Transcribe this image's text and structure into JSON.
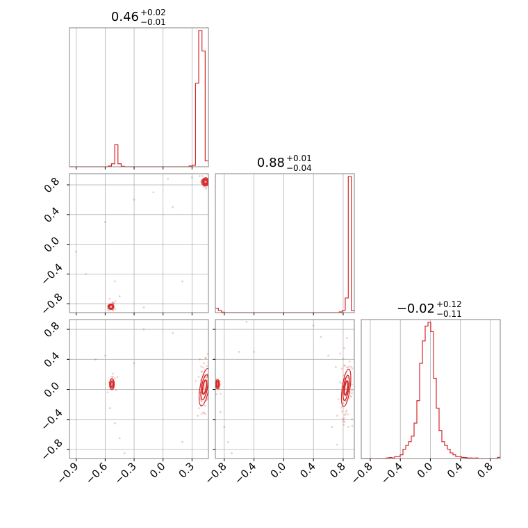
{
  "colors": {
    "series": "#d62728",
    "grid": "#b0b0b0",
    "axis": "#000000"
  },
  "titles": [
    {
      "base": "0.46",
      "plus": "+0.02",
      "minus": "−0.01"
    },
    {
      "base": "0.88",
      "plus": "+0.01",
      "minus": "−0.04"
    },
    {
      "base": "−0.02",
      "plus": "+0.12",
      "minus": "−0.11"
    }
  ],
  "chart_data": {
    "type": "corner",
    "grid": true,
    "parameters": [
      {
        "range": [
          -0.97,
          0.47
        ],
        "ticks": [
          -0.9,
          -0.6,
          -0.3,
          0.0,
          0.3
        ],
        "tick_labels": [
          "−0.9",
          "−0.6",
          "−0.3",
          "0.0",
          "0.3"
        ],
        "hist": {
          "edges": [
            -0.97,
            0.47
          ],
          "values": [
            0,
            0,
            0,
            0,
            0,
            0,
            0,
            0,
            0,
            0,
            0,
            0,
            0.5,
            2,
            15,
            2,
            0.3,
            0,
            0,
            0,
            0,
            0,
            0,
            0,
            0,
            0,
            0,
            0,
            0,
            0,
            0,
            0,
            0,
            0,
            0,
            0,
            0,
            0.5,
            1,
            57,
            93,
            79,
            4
          ]
        }
      },
      {
        "range": [
          -0.92,
          0.95
        ],
        "ticks": [
          -0.8,
          -0.4,
          0.0,
          0.4,
          0.8
        ],
        "tick_labels": [
          "−0.8",
          "−0.4",
          "0.0",
          "0.4",
          "0.8"
        ],
        "hist": {
          "edges": [
            -0.92,
            0.95
          ],
          "values": [
            3,
            1.5,
            0.3,
            0,
            0,
            0,
            0,
            0,
            0,
            0,
            0,
            0,
            0,
            0,
            0,
            0,
            0,
            0,
            0,
            0,
            0,
            0,
            0,
            0,
            0,
            0,
            0,
            0,
            0,
            0,
            0,
            0,
            0,
            0,
            0,
            0,
            0,
            0,
            0,
            0,
            0,
            0.5,
            1.5,
            10,
            93,
            1.5
          ]
        }
      },
      {
        "range": [
          -0.92,
          0.93
        ],
        "ticks": [
          -0.8,
          -0.4,
          0.0,
          0.4,
          0.8
        ],
        "tick_labels": [
          "−0.8",
          "−0.4",
          "0.0",
          "0.4",
          "0.8"
        ],
        "hist": {
          "edges": [
            -0.92,
            0.93
          ],
          "values": [
            0,
            0,
            0,
            0,
            0,
            0,
            0,
            0,
            0,
            0.3,
            0.5,
            0.3,
            1,
            1,
            2,
            5,
            7,
            9,
            12,
            19,
            31,
            51,
            63,
            71,
            73,
            68,
            43,
            27,
            15,
            9,
            7,
            5,
            3,
            2,
            1,
            1,
            0.6,
            0.5,
            0.3,
            0.3,
            0.2,
            0.3,
            0,
            0,
            0,
            0,
            0,
            0,
            0,
            0.6
          ]
        }
      }
    ],
    "pairs": [
      {
        "x_param": 0,
        "y_param": 1,
        "clusters": [
          {
            "cx": 0.44,
            "cy": 0.84,
            "sx": 0.018,
            "sy": 0.025,
            "rot": 20,
            "levels": [
              1.0,
              1.6,
              2.2
            ],
            "npts": 45
          },
          {
            "cx": -0.54,
            "cy": -0.84,
            "sx": 0.015,
            "sy": 0.018,
            "rot": 0,
            "levels": [
              1.2,
              2.0
            ],
            "npts": 22
          }
        ],
        "scatter": [
          [
            -0.8,
            -0.4
          ],
          [
            -0.6,
            0.3
          ],
          [
            -0.3,
            0.6
          ],
          [
            -0.1,
            0.7
          ],
          [
            0.1,
            0.5
          ],
          [
            0.2,
            -0.5
          ],
          [
            -0.5,
            -0.5
          ],
          [
            -0.9,
            -0.1
          ],
          [
            -0.2,
            -0.85
          ],
          [
            0.3,
            0.9
          ],
          [
            0.05,
            0.88
          ],
          [
            -0.45,
            -0.7
          ]
        ]
      },
      {
        "x_param": 0,
        "y_param": 2,
        "clusters": [
          {
            "cx": -0.53,
            "cy": 0.07,
            "sx": 0.013,
            "sy": 0.04,
            "rot": 0,
            "levels": [
              1.0,
              1.8
            ],
            "npts": 30
          },
          {
            "cx": 0.43,
            "cy": 0.03,
            "sx": 0.022,
            "sy": 0.12,
            "rot": 10,
            "levels": [
              0.8,
              1.4,
              2.1
            ],
            "npts": 70
          }
        ],
        "scatter": [
          [
            -0.55,
            -0.25
          ],
          [
            -0.5,
            -0.45
          ],
          [
            -0.45,
            -0.65
          ],
          [
            -0.4,
            -0.85
          ],
          [
            -0.6,
            0.45
          ],
          [
            -0.7,
            0.4
          ],
          [
            -0.2,
            0.8
          ],
          [
            0.1,
            0.75
          ],
          [
            0.2,
            -0.7
          ],
          [
            0.38,
            0.4
          ],
          [
            0.36,
            -0.35
          ],
          [
            -0.3,
            0.35
          ]
        ]
      },
      {
        "x_param": 1,
        "y_param": 2,
        "clusters": [
          {
            "cx": -0.89,
            "cy": 0.07,
            "sx": 0.012,
            "sy": 0.03,
            "rot": 0,
            "levels": [
              1.2,
              2.0
            ],
            "npts": 25
          },
          {
            "cx": 0.84,
            "cy": 0.02,
            "sx": 0.025,
            "sy": 0.12,
            "rot": 8,
            "levels": [
              0.8,
              1.4,
              2.1
            ],
            "npts": 70
          }
        ],
        "scatter": [
          [
            -0.85,
            -0.3
          ],
          [
            -0.8,
            -0.5
          ],
          [
            -0.75,
            -0.7
          ],
          [
            -0.7,
            -0.85
          ],
          [
            -0.6,
            0.5
          ],
          [
            -0.4,
            0.5
          ],
          [
            0.4,
            0.85
          ],
          [
            0.5,
            0.7
          ],
          [
            0.6,
            0.45
          ],
          [
            0.7,
            0.3
          ],
          [
            0.72,
            -0.35
          ],
          [
            0.65,
            -0.5
          ],
          [
            -0.5,
            0.9
          ]
        ]
      }
    ]
  }
}
